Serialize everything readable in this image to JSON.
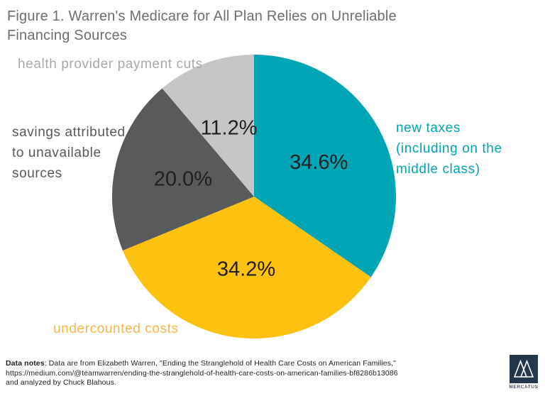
{
  "figure": {
    "title": "Figure 1. Warren's Medicare for All Plan Relies on Unreliable\nFinancing Sources"
  },
  "chart_data": {
    "type": "pie",
    "title": "Figure 1. Warren's Medicare for All Plan Relies on Unreliable Financing Sources",
    "start_angle_deg": 0,
    "direction": "clockwise",
    "slices": [
      {
        "label": "new taxes (including on the middle class)",
        "value": 34.6,
        "pct_label": "34.6%",
        "color": "#00a5b5"
      },
      {
        "label": "undercounted costs",
        "value": 34.2,
        "pct_label": "34.2%",
        "color": "#fdc110"
      },
      {
        "label": "savings attributed to unavailable sources",
        "value": 20.0,
        "pct_label": "20.0%",
        "color": "#595a5c"
      },
      {
        "label": "health provider payment cuts",
        "value": 11.2,
        "pct_label": "11.2%",
        "color": "#c5c6c8"
      }
    ],
    "pct_label_color": "#231f20",
    "legend_position": "callouts-around-pie"
  },
  "callouts": {
    "health_provider": {
      "text": "health provider payment cuts",
      "color": "#a7a9ac"
    },
    "savings": {
      "text": "savings attributed\nto unavailable\nsources",
      "color": "#58595b"
    },
    "new_taxes": {
      "text": "new taxes\n(including on the\nmiddle class)",
      "color": "#00a5b5"
    },
    "undercounted": {
      "text": "undercounted costs",
      "color": "#f8b548"
    }
  },
  "footer": {
    "label_bold": "Data notes",
    "line1_rest": ": Data are from Elizabeth Warren, \"Ending the Stranglehold of Health Care Costs on American Families,\"",
    "line2": "https://medium.com/@teamwarren/ending-the-stranglehold-of-health-care-costs-on-american-families-bf8286b13086",
    "line3": "and analyzed by Chuck Blahous."
  },
  "logo": {
    "brand": "MERCATUS",
    "square_color": "#24364a",
    "text_color": "#46525e"
  }
}
